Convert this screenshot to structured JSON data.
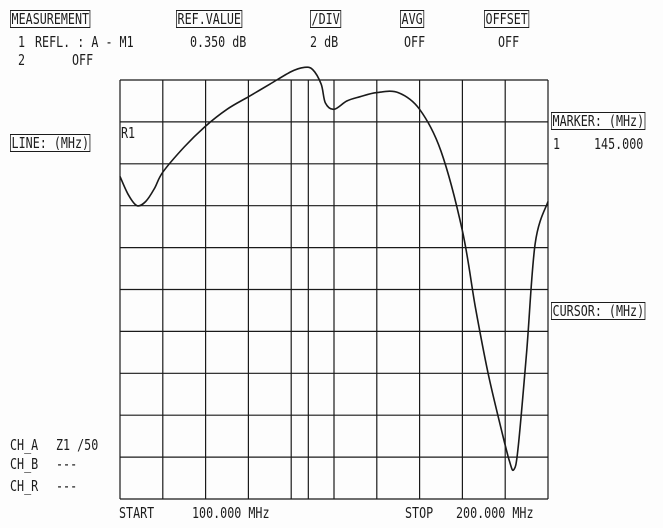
{
  "header": {
    "measurement_label": "MEASUREMENT",
    "ref_value_label": "REF.VALUE",
    "div_label": "/DIV",
    "avg_label": "AVG",
    "offset_label": "OFFSET",
    "ch1_index": "1",
    "ch1_measurement": "REFL. : A - M1",
    "ch1_ref_value": "0.350 dB",
    "ch1_div": "2 dB",
    "ch1_avg": "OFF",
    "ch1_offset": "OFF",
    "ch2_index": "2",
    "ch2_state": "OFF"
  },
  "left_panel": {
    "line_label": "LINE: (MHz)",
    "channels": [
      {
        "name": "CH_A",
        "value": "Z1 /50"
      },
      {
        "name": "CH_B",
        "value": "---"
      },
      {
        "name": "CH_R",
        "value": "---"
      }
    ]
  },
  "right_panel": {
    "marker_label": "MARKER: (MHz)",
    "marker_index": "1",
    "marker_value": "145.000",
    "cursor_label": "CURSOR: (MHz)"
  },
  "plot": {
    "ref_label": "R1",
    "start_label": "START",
    "start_value": "100.000 MHz",
    "stop_label": "STOP",
    "stop_value": "200.000 MHz",
    "trace_color": "#1a1a1a"
  },
  "chart_data": {
    "type": "line",
    "x_unit": "MHz",
    "xlim": [
      100,
      200
    ],
    "grid_divisions": {
      "x": 10,
      "y": 10
    },
    "x": [
      100,
      102,
      104,
      106,
      108,
      110,
      115,
      120,
      125,
      130,
      135,
      140,
      143,
      145,
      147,
      148,
      150,
      153,
      156,
      160,
      165,
      170,
      175,
      180,
      183,
      186,
      189,
      191,
      192,
      193,
      195,
      197,
      200
    ],
    "y_div": [
      7.7,
      7.25,
      7.0,
      7.1,
      7.4,
      7.8,
      8.4,
      8.9,
      9.3,
      9.6,
      9.9,
      10.2,
      10.3,
      10.25,
      9.9,
      9.45,
      9.3,
      9.5,
      9.6,
      9.7,
      9.7,
      9.3,
      8.3,
      6.4,
      4.6,
      3.0,
      1.7,
      0.9,
      0.7,
      1.2,
      3.5,
      6.1,
      7.1
    ]
  }
}
